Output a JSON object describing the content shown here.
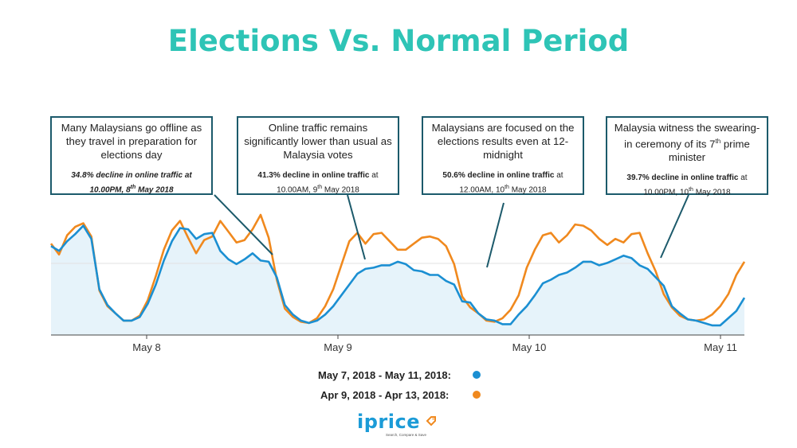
{
  "title": "Elections Vs. Normal Period",
  "colors": {
    "title": "#2ec4b6",
    "series_a": "#1b8fd2",
    "series_b": "#f0891e",
    "area": "#e6f3fa",
    "callout_border": "#1c5a6b"
  },
  "callouts": [
    {
      "text": "Many Malaysians go offline as they travel in preparation for elections day",
      "stat_bold": "34.8% decline in online traffic at",
      "stat_line2": "10.00PM, 8",
      "stat_sup": "th",
      "stat_tail": " May 2018",
      "italic": true
    },
    {
      "text": "Online traffic remains significantly lower than usual as Malaysia votes",
      "stat_bold": "41.3% decline in online traffic",
      "stat_rest": " at",
      "stat_line2": "10.00AM, 9",
      "stat_sup": "th",
      "stat_tail": " May 2018",
      "italic": false
    },
    {
      "text": "Malaysians are focused on the elections results even at 12-midnight",
      "stat_bold": "50.6% decline in online traffic",
      "stat_rest": " at",
      "stat_line2": "12.00AM, 10",
      "stat_sup": "th",
      "stat_tail": " May 2018",
      "italic": false
    },
    {
      "text_pre": "Malaysia witness the swearing-in ceremony of its 7",
      "text_sup": "th",
      "text_post": " prime minister",
      "stat_bold": "39.7% decline in online traffic",
      "stat_rest": " at",
      "stat_line2": "10.00PM, 10",
      "stat_sup": "th",
      "stat_tail": " May 2018",
      "italic": false
    }
  ],
  "legend": [
    {
      "label": "May 7, 2018 - May 11, 2018:",
      "color": "#1b8fd2"
    },
    {
      "label": "Apr 9, 2018 - Apr 13, 2018:",
      "color": "#f0891e"
    }
  ],
  "logo": {
    "word": "iprice",
    "tagline": "Search, Compare & Save"
  },
  "chart_data": {
    "type": "line",
    "title": "Elections Vs. Normal Period",
    "x_ticks": [
      "May 8",
      "May 9",
      "May 10",
      "May 11"
    ],
    "x_tick_positions": [
      0.5,
      1.5,
      2.5,
      3.5
    ],
    "x_range": [
      0.0,
      3.625
    ],
    "ylim": [
      0,
      100
    ],
    "grid": false,
    "legend_position": "bottom",
    "series": [
      {
        "name": "May 7, 2018 - May 11, 2018",
        "color": "#1b8fd2",
        "fill": true,
        "values": [
          74,
          70,
          78,
          84,
          91,
          80,
          38,
          25,
          18,
          12,
          12,
          15,
          26,
          42,
          62,
          78,
          89,
          88,
          80,
          84,
          85,
          70,
          63,
          59,
          63,
          68,
          62,
          61,
          48,
          25,
          17,
          12,
          10,
          12,
          17,
          24,
          33,
          42,
          51,
          55,
          56,
          58,
          58,
          61,
          59,
          54,
          53,
          50,
          50,
          45,
          42,
          28,
          27,
          18,
          13,
          12,
          9,
          9,
          17,
          24,
          33,
          43,
          46,
          50,
          52,
          56,
          61,
          61,
          58,
          60,
          63,
          66,
          64,
          58,
          55,
          48,
          41,
          24,
          18,
          13,
          12,
          10,
          8,
          8,
          14,
          20,
          31
        ]
      },
      {
        "name": "Apr 9, 2018 - Apr 13, 2018",
        "color": "#f0891e",
        "values": [
          76,
          67,
          83,
          90,
          93,
          82,
          37,
          24,
          18,
          12,
          12,
          16,
          29,
          49,
          71,
          87,
          95,
          81,
          68,
          79,
          82,
          95,
          86,
          77,
          79,
          88,
          100,
          81,
          46,
          22,
          15,
          11,
          10,
          14,
          24,
          38,
          58,
          78,
          85,
          76,
          84,
          85,
          78,
          71,
          71,
          76,
          81,
          82,
          80,
          74,
          59,
          32,
          23,
          18,
          12,
          11,
          14,
          21,
          33,
          56,
          71,
          83,
          85,
          77,
          83,
          92,
          91,
          87,
          80,
          75,
          80,
          77,
          84,
          85,
          68,
          53,
          34,
          23,
          16,
          13,
          12,
          13,
          17,
          24,
          34,
          50,
          61
        ]
      }
    ]
  }
}
